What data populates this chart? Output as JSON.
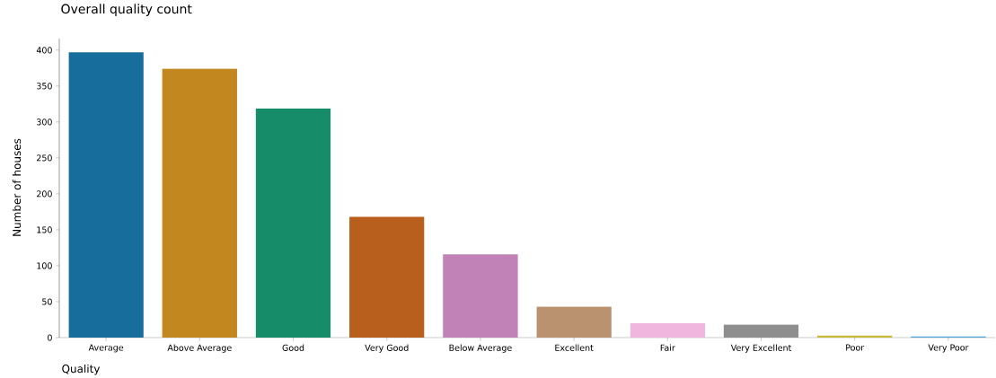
{
  "chart_data": {
    "type": "bar",
    "title": "Overall quality count",
    "xlabel": "Quality",
    "ylabel": "Number of houses",
    "categories": [
      "Average",
      "Above Average",
      "Good",
      "Very Good",
      "Below Average",
      "Excellent",
      "Fair",
      "Very Excellent",
      "Poor",
      "Very Poor"
    ],
    "values": [
      397,
      374,
      319,
      168,
      116,
      43,
      20,
      18,
      3,
      2
    ],
    "colors": [
      "#176d9c",
      "#c3871f",
      "#168c69",
      "#b85f1d",
      "#c182b7",
      "#bb9270",
      "#f0b6dd",
      "#8e8e8e",
      "#c7bb3a",
      "#4ea5d8"
    ],
    "ylim": [
      0,
      416
    ],
    "yticks": [
      0,
      50,
      100,
      150,
      200,
      250,
      300,
      350,
      400
    ]
  }
}
